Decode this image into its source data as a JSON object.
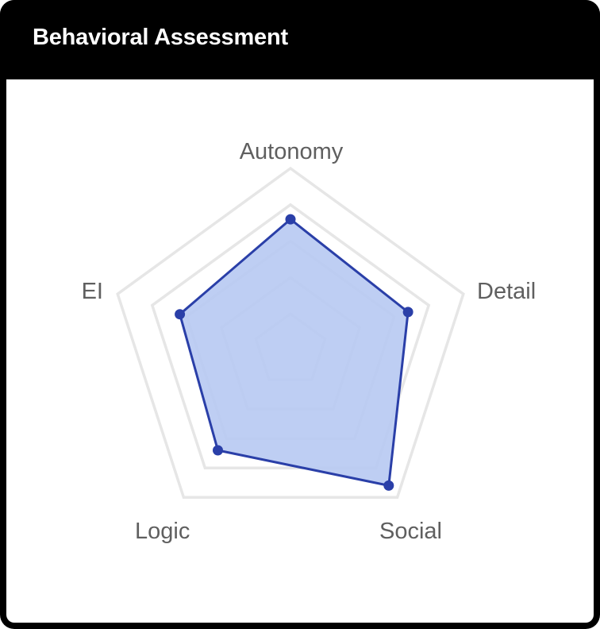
{
  "header": {
    "title": "Behavioral Assessment"
  },
  "chart_data": {
    "type": "radar",
    "title": "Behavioral Assessment",
    "axes": [
      "Autonomy",
      "Detail",
      "Social",
      "Logic",
      "EI"
    ],
    "series": [
      {
        "values": [
          72,
          68,
          92,
          68,
          64
        ]
      }
    ],
    "range": [
      0,
      100
    ],
    "grid_levels": 5,
    "grid": true,
    "legend": "none",
    "colors": {
      "fill": "#b8caf2",
      "stroke": "#2a3fa8",
      "point": "#2a3fa8",
      "grid": "#e6e6e6",
      "label": "#5f5f5f"
    }
  }
}
